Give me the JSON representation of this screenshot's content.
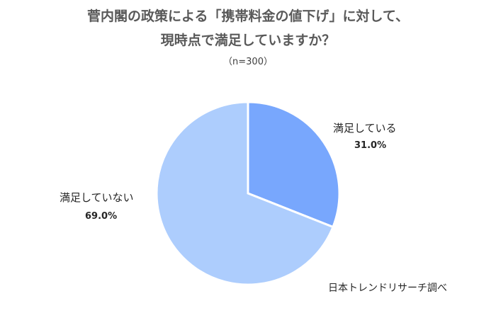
{
  "chart_data": {
    "type": "pie",
    "title_line1": "菅内閣の政策による「携帯料金の値下げ」に対して、",
    "title_line2": "現時点で満足していますか？",
    "subtitle": "（n=300）",
    "slices": [
      {
        "label": "満足している",
        "value": 31.0,
        "value_label": "31.0%",
        "color": "#78a7fd"
      },
      {
        "label": "満足していない",
        "value": 69.0,
        "value_label": "69.0%",
        "color": "#adcdfd"
      }
    ],
    "start_angle_deg": 0,
    "direction": "clockwise"
  },
  "source_note": "日本トレンドリサーチ調べ"
}
